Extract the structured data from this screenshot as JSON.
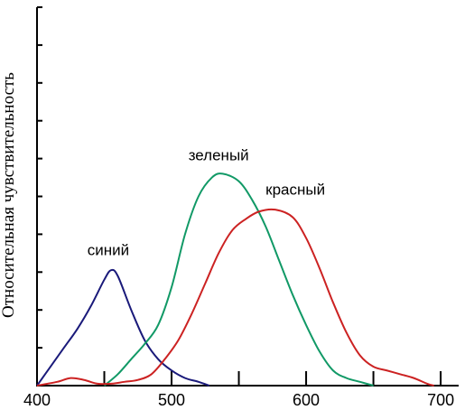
{
  "chart_data": {
    "type": "line",
    "title": "",
    "xlabel": "",
    "ylabel": "Относительная чувствительность",
    "xlim": [
      400,
      710
    ],
    "ylim": [
      0,
      1.0
    ],
    "x_ticks": [
      400,
      500,
      600,
      700
    ],
    "x_tick_labels": [
      "400",
      "500",
      "600",
      "700"
    ],
    "minor_x_ticks": [
      450,
      550,
      650
    ],
    "y_ticks": [
      0.1,
      0.2,
      0.3,
      0.4,
      0.5,
      0.6,
      0.7,
      0.8,
      0.9,
      1.0
    ],
    "grid": false,
    "legend": "none",
    "series": [
      {
        "name": "синий",
        "color": "#1a1a7a",
        "label_at": [
          453,
          0.345
        ],
        "points": [
          [
            400,
            0.0
          ],
          [
            410,
            0.05
          ],
          [
            420,
            0.1
          ],
          [
            430,
            0.15
          ],
          [
            440,
            0.21
          ],
          [
            450,
            0.28
          ],
          [
            455,
            0.305
          ],
          [
            460,
            0.29
          ],
          [
            470,
            0.2
          ],
          [
            480,
            0.12
          ],
          [
            490,
            0.07
          ],
          [
            500,
            0.04
          ],
          [
            510,
            0.02
          ],
          [
            520,
            0.01
          ],
          [
            528,
            0.0
          ]
        ]
      },
      {
        "name": "зеленый",
        "color": "#119966",
        "label_at": [
          535,
          0.595
        ],
        "points": [
          [
            450,
            0.0
          ],
          [
            460,
            0.03
          ],
          [
            470,
            0.07
          ],
          [
            480,
            0.11
          ],
          [
            490,
            0.16
          ],
          [
            500,
            0.26
          ],
          [
            510,
            0.4
          ],
          [
            520,
            0.5
          ],
          [
            530,
            0.55
          ],
          [
            538,
            0.56
          ],
          [
            550,
            0.54
          ],
          [
            560,
            0.49
          ],
          [
            570,
            0.42
          ],
          [
            580,
            0.33
          ],
          [
            590,
            0.24
          ],
          [
            600,
            0.16
          ],
          [
            610,
            0.09
          ],
          [
            620,
            0.04
          ],
          [
            630,
            0.02
          ],
          [
            640,
            0.01
          ],
          [
            650,
            0.0
          ]
        ]
      },
      {
        "name": "красный",
        "color": "#cc2222",
        "label_at": [
          592,
          0.505
        ],
        "points": [
          [
            400,
            0.0
          ],
          [
            415,
            0.01
          ],
          [
            425,
            0.02
          ],
          [
            435,
            0.015
          ],
          [
            445,
            0.005
          ],
          [
            455,
            0.005
          ],
          [
            465,
            0.01
          ],
          [
            475,
            0.015
          ],
          [
            485,
            0.03
          ],
          [
            495,
            0.07
          ],
          [
            505,
            0.12
          ],
          [
            515,
            0.19
          ],
          [
            525,
            0.27
          ],
          [
            535,
            0.35
          ],
          [
            545,
            0.41
          ],
          [
            555,
            0.44
          ],
          [
            565,
            0.46
          ],
          [
            577,
            0.465
          ],
          [
            590,
            0.445
          ],
          [
            600,
            0.39
          ],
          [
            610,
            0.31
          ],
          [
            620,
            0.22
          ],
          [
            630,
            0.14
          ],
          [
            640,
            0.08
          ],
          [
            650,
            0.05
          ],
          [
            660,
            0.04
          ],
          [
            670,
            0.03
          ],
          [
            680,
            0.02
          ],
          [
            690,
            0.005
          ],
          [
            695,
            0.0
          ]
        ]
      }
    ]
  }
}
